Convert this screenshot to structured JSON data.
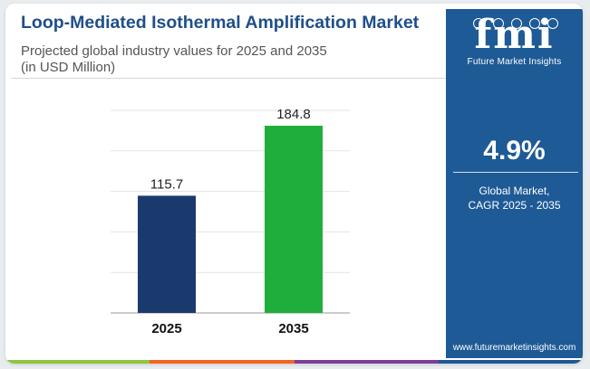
{
  "title": "Loop-Mediated Isothermal Amplification Market",
  "subtitle_line1": "Projected global industry values for 2025 and 2035",
  "subtitle_line2": "(in USD Million)",
  "chart_data": {
    "type": "bar",
    "categories": [
      "2025",
      "2035"
    ],
    "values": [
      115.7,
      184.8
    ],
    "value_labels": [
      "115.7",
      "184.8"
    ],
    "bar_colors": [
      "#1a3a6e",
      "#1fae3c"
    ],
    "ylim": [
      0,
      200
    ],
    "grid": true,
    "xlabel": "",
    "ylabel": ""
  },
  "side_panel": {
    "logo_mark": "fmi",
    "logo_text": "Future Market Insights",
    "cagr_value": "4.9%",
    "cagr_label_line1": "Global Market,",
    "cagr_label_line2": "CAGR 2025 - 2035",
    "website": "www.futuremarketinsights.com",
    "background_color": "#1e5a96"
  },
  "accent_bar_colors": [
    "#8dc63f",
    "#f26522",
    "#7b3f98",
    "#1e5a96"
  ]
}
